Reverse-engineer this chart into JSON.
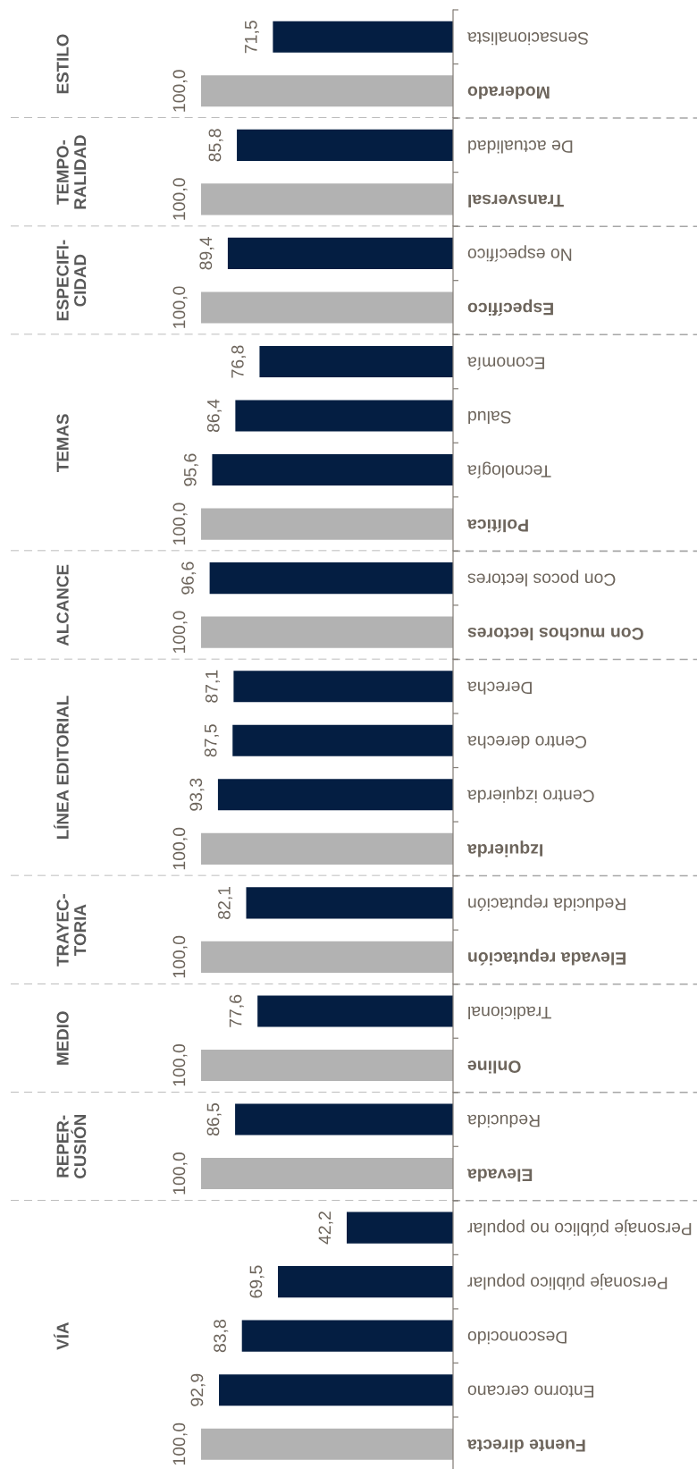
{
  "chart_data": [
    {
      "type": "bar",
      "orientation": "horizontal",
      "ylabel": "ESTILO",
      "categories": [
        "Sensacionalista",
        "Moderado"
      ],
      "values": [
        71.5,
        100.0
      ],
      "value_labels": [
        "71,5",
        "100,0"
      ],
      "colors": [
        "#041e42",
        "#b2b2b2"
      ]
    },
    {
      "type": "bar",
      "orientation": "horizontal",
      "ylabel": "TEMPO-\nRALIDAD",
      "categories": [
        "De actualidad",
        "Transversal"
      ],
      "values": [
        85.8,
        100.0
      ],
      "value_labels": [
        "85,8",
        "100,0"
      ],
      "colors": [
        "#041e42",
        "#b2b2b2"
      ]
    },
    {
      "type": "bar",
      "orientation": "horizontal",
      "ylabel": "ESPECIFI-\nCIDAD",
      "categories": [
        "No específico",
        "Específico"
      ],
      "values": [
        89.4,
        100.0
      ],
      "value_labels": [
        "89,4",
        "100,0"
      ],
      "colors": [
        "#041e42",
        "#b2b2b2"
      ]
    },
    {
      "type": "bar",
      "orientation": "horizontal",
      "ylabel": "TEMAS",
      "categories": [
        "Economía",
        "Salud",
        "Tecnología",
        "Política"
      ],
      "values": [
        76.8,
        86.4,
        95.6,
        100.0
      ],
      "value_labels": [
        "76,8",
        "86,4",
        "95,6",
        "100,0"
      ],
      "colors": [
        "#041e42",
        "#041e42",
        "#041e42",
        "#b2b2b2"
      ]
    },
    {
      "type": "bar",
      "orientation": "horizontal",
      "ylabel": "ALCANCE",
      "categories": [
        "Con pocos lectores",
        "Con muchos lectores"
      ],
      "values": [
        96.6,
        100.0
      ],
      "value_labels": [
        "96,6",
        "100,0"
      ],
      "colors": [
        "#041e42",
        "#b2b2b2"
      ]
    },
    {
      "type": "bar",
      "orientation": "horizontal",
      "ylabel": "LÍNEA EDITORIAL",
      "categories": [
        "Derecha",
        "Centro derecha",
        "Centro izquierda",
        "Izquierda"
      ],
      "values": [
        87.1,
        87.5,
        93.3,
        100.0
      ],
      "value_labels": [
        "87,1",
        "87,5",
        "93,3",
        "100,0"
      ],
      "colors": [
        "#041e42",
        "#041e42",
        "#041e42",
        "#b2b2b2"
      ]
    },
    {
      "type": "bar",
      "orientation": "horizontal",
      "ylabel": "TRAYEC-\nTORIA",
      "categories": [
        "Reducida reputación",
        "Elevada reputación"
      ],
      "values": [
        82.1,
        100.0
      ],
      "value_labels": [
        "82,1",
        "100,0"
      ],
      "colors": [
        "#041e42",
        "#b2b2b2"
      ]
    },
    {
      "type": "bar",
      "orientation": "horizontal",
      "ylabel": "MEDIO",
      "categories": [
        "Tradicional",
        "Online"
      ],
      "values": [
        77.6,
        100.0
      ],
      "value_labels": [
        "77,6",
        "100,0"
      ],
      "colors": [
        "#041e42",
        "#b2b2b2"
      ]
    },
    {
      "type": "bar",
      "orientation": "horizontal",
      "ylabel": "REPER-\nCUSIÓN",
      "categories": [
        "Reducida",
        "Elevada"
      ],
      "values": [
        86.5,
        100.0
      ],
      "value_labels": [
        "86,5",
        "100,0"
      ],
      "colors": [
        "#041e42",
        "#b2b2b2"
      ]
    },
    {
      "type": "bar",
      "orientation": "horizontal",
      "ylabel": "VÍA",
      "categories": [
        "Personaje público no popular",
        "Personaje público popular",
        "Desconocido",
        "Entorno cercano",
        "Fuente directa"
      ],
      "values": [
        42.2,
        69.5,
        83.8,
        92.9,
        100.0
      ],
      "value_labels": [
        "42,2",
        "69,5",
        "83,8",
        "92,9",
        "100,0"
      ],
      "colors": [
        "#041e42",
        "#041e42",
        "#041e42",
        "#041e42",
        "#b2b2b2"
      ]
    }
  ]
}
